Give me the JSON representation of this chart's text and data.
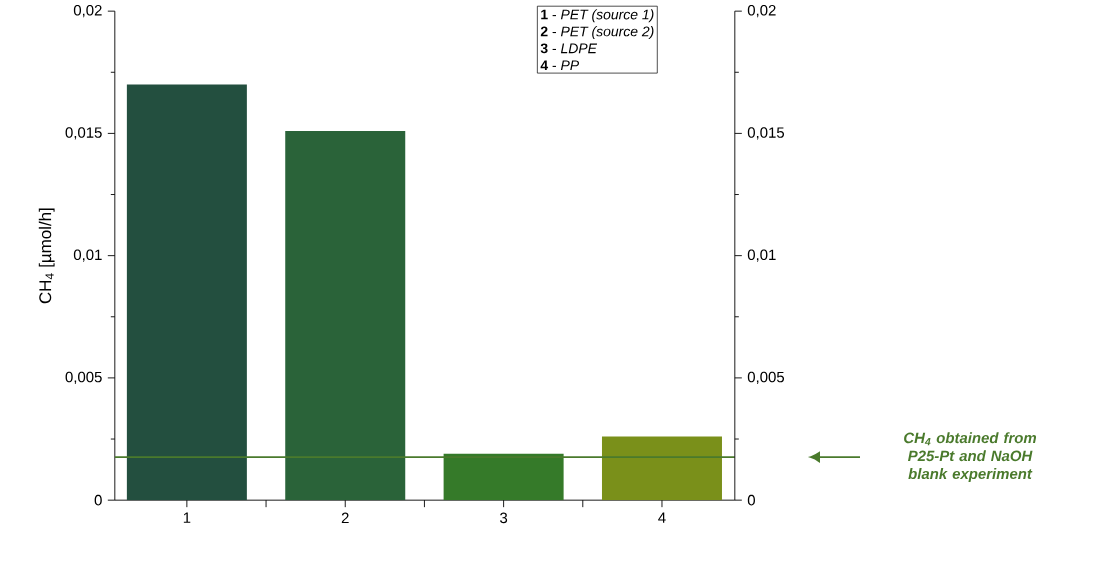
{
  "chart_data": {
    "type": "bar",
    "categories": [
      "1",
      "2",
      "3",
      "4"
    ],
    "values": [
      0.017,
      0.0151,
      0.0019,
      0.0026
    ],
    "colors": [
      "#234f3f",
      "#2a6339",
      "#357a29",
      "#7a901a"
    ],
    "ylabel": "CH$_{4}$ [µmol/h]",
    "ylim": [
      0,
      0.02
    ],
    "yticks": [
      {
        "value": 0,
        "label": "0"
      },
      {
        "value": 0.005,
        "label": "0,005"
      },
      {
        "value": 0.01,
        "label": "0,01"
      },
      {
        "value": 0.015,
        "label": "0,015"
      },
      {
        "value": 0.02,
        "label": "0,02"
      }
    ],
    "y2lim": [
      0,
      0.02
    ],
    "y2ticks": [
      {
        "value": 0,
        "label": "0"
      },
      {
        "value": 0.005,
        "label": "0,005"
      },
      {
        "value": 0.01,
        "label": "0,01"
      },
      {
        "value": 0.015,
        "label": "0,015"
      },
      {
        "value": 0.02,
        "label": "0,02"
      }
    ],
    "ref_lines": [
      {
        "axis": "y",
        "value": 0.00176,
        "label": "CH$_{4}$ obtained from P25-Pt and NaOH blank experiment",
        "color": "#4a7a2c"
      }
    ],
    "annotations": [
      "**1** - *PET (source 1)*",
      "**2** - *PET (source 2)*",
      "**3** - *LDPE*",
      "**4** - *PP*"
    ],
    "grid": false
  }
}
